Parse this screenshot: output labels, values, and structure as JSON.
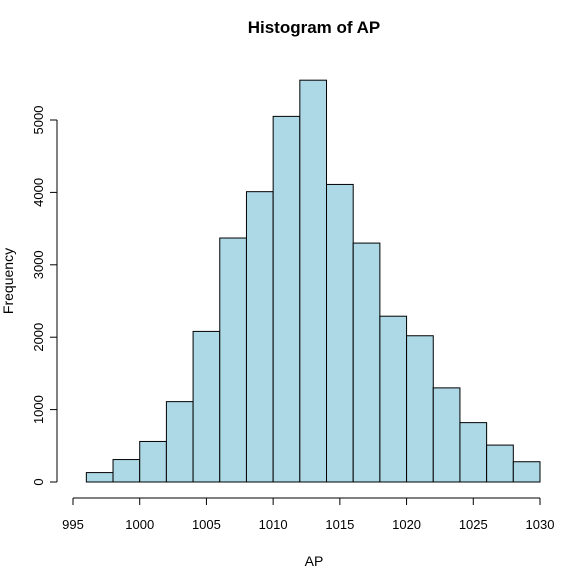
{
  "chart_data": {
    "type": "bar",
    "title": "Histogram of AP",
    "xlabel": "AP",
    "ylabel": "Frequency",
    "bin_width": 2,
    "bins": [
      {
        "start": 996,
        "end": 998,
        "count": 130
      },
      {
        "start": 998,
        "end": 1000,
        "count": 310
      },
      {
        "start": 1000,
        "end": 1002,
        "count": 560
      },
      {
        "start": 1002,
        "end": 1004,
        "count": 1110
      },
      {
        "start": 1004,
        "end": 1006,
        "count": 2080
      },
      {
        "start": 1006,
        "end": 1008,
        "count": 3370
      },
      {
        "start": 1008,
        "end": 1010,
        "count": 4010
      },
      {
        "start": 1010,
        "end": 1012,
        "count": 5050
      },
      {
        "start": 1012,
        "end": 1014,
        "count": 5550
      },
      {
        "start": 1014,
        "end": 1016,
        "count": 4110
      },
      {
        "start": 1016,
        "end": 1018,
        "count": 3300
      },
      {
        "start": 1018,
        "end": 1020,
        "count": 2290
      },
      {
        "start": 1020,
        "end": 1022,
        "count": 2020
      },
      {
        "start": 1022,
        "end": 1024,
        "count": 1300
      },
      {
        "start": 1024,
        "end": 1026,
        "count": 820
      },
      {
        "start": 1026,
        "end": 1028,
        "count": 510
      },
      {
        "start": 1028,
        "end": 1030,
        "count": 280
      }
    ],
    "xlim": [
      995,
      1030
    ],
    "ylim": [
      0,
      5500
    ],
    "xticks": [
      995,
      1000,
      1005,
      1010,
      1015,
      1020,
      1025,
      1030
    ],
    "yticks": [
      0,
      1000,
      2000,
      3000,
      4000,
      5000
    ],
    "grid": false,
    "bar_color": "#add8e6",
    "edge_color": "#000000"
  }
}
